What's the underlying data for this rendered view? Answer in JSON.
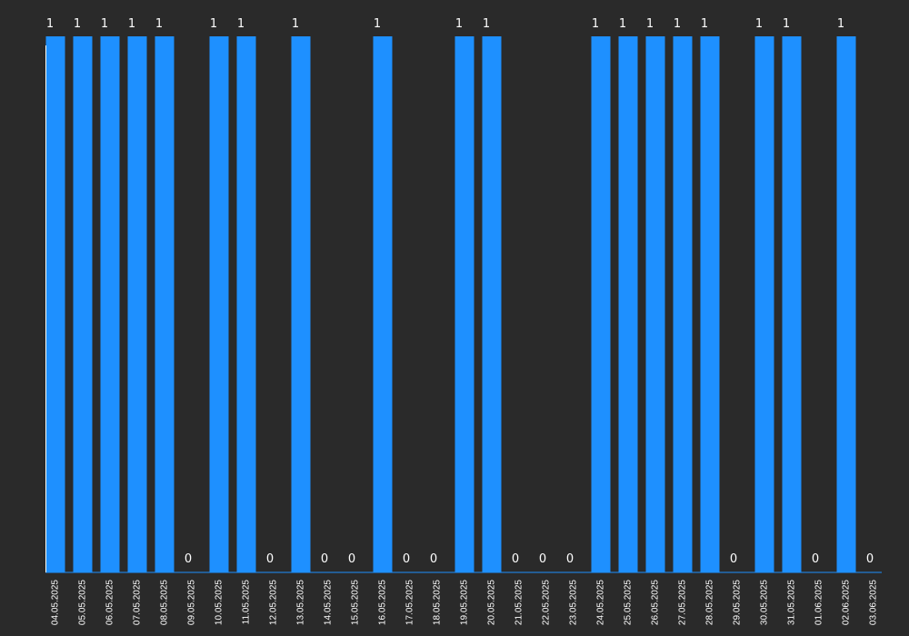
{
  "chart_data": {
    "type": "bar",
    "title": "",
    "xlabel": "",
    "ylabel": "",
    "ylim": [
      0,
      1
    ],
    "grid": false,
    "legend": "none",
    "categories": [
      "04.05.2025",
      "05.05.2025",
      "06.05.2025",
      "07.05.2025",
      "08.05.2025",
      "09.05.2025",
      "10.05.2025",
      "11.05.2025",
      "12.05.2025",
      "13.05.2025",
      "14.05.2025",
      "15.05.2025",
      "16.05.2025",
      "17.05.2025",
      "18.05.2025",
      "19.05.2025",
      "20.05.2025",
      "21.05.2025",
      "22.05.2025",
      "23.05.2025",
      "24.05.2025",
      "25.05.2025",
      "26.05.2025",
      "27.05.2025",
      "28.05.2025",
      "29.05.2025",
      "30.05.2025",
      "31.05.2025",
      "01.06.2025",
      "02.06.2025",
      "03.06.2025"
    ],
    "values": [
      1,
      1,
      1,
      1,
      1,
      0,
      1,
      1,
      0,
      1,
      0,
      0,
      1,
      0,
      0,
      1,
      1,
      0,
      0,
      0,
      1,
      1,
      1,
      1,
      1,
      0,
      1,
      1,
      0,
      1,
      0
    ],
    "colors": {
      "background": "#2a2a2a",
      "bar": "#1e90ff",
      "axis": "#1e90ff",
      "text": "#ffffff"
    }
  }
}
